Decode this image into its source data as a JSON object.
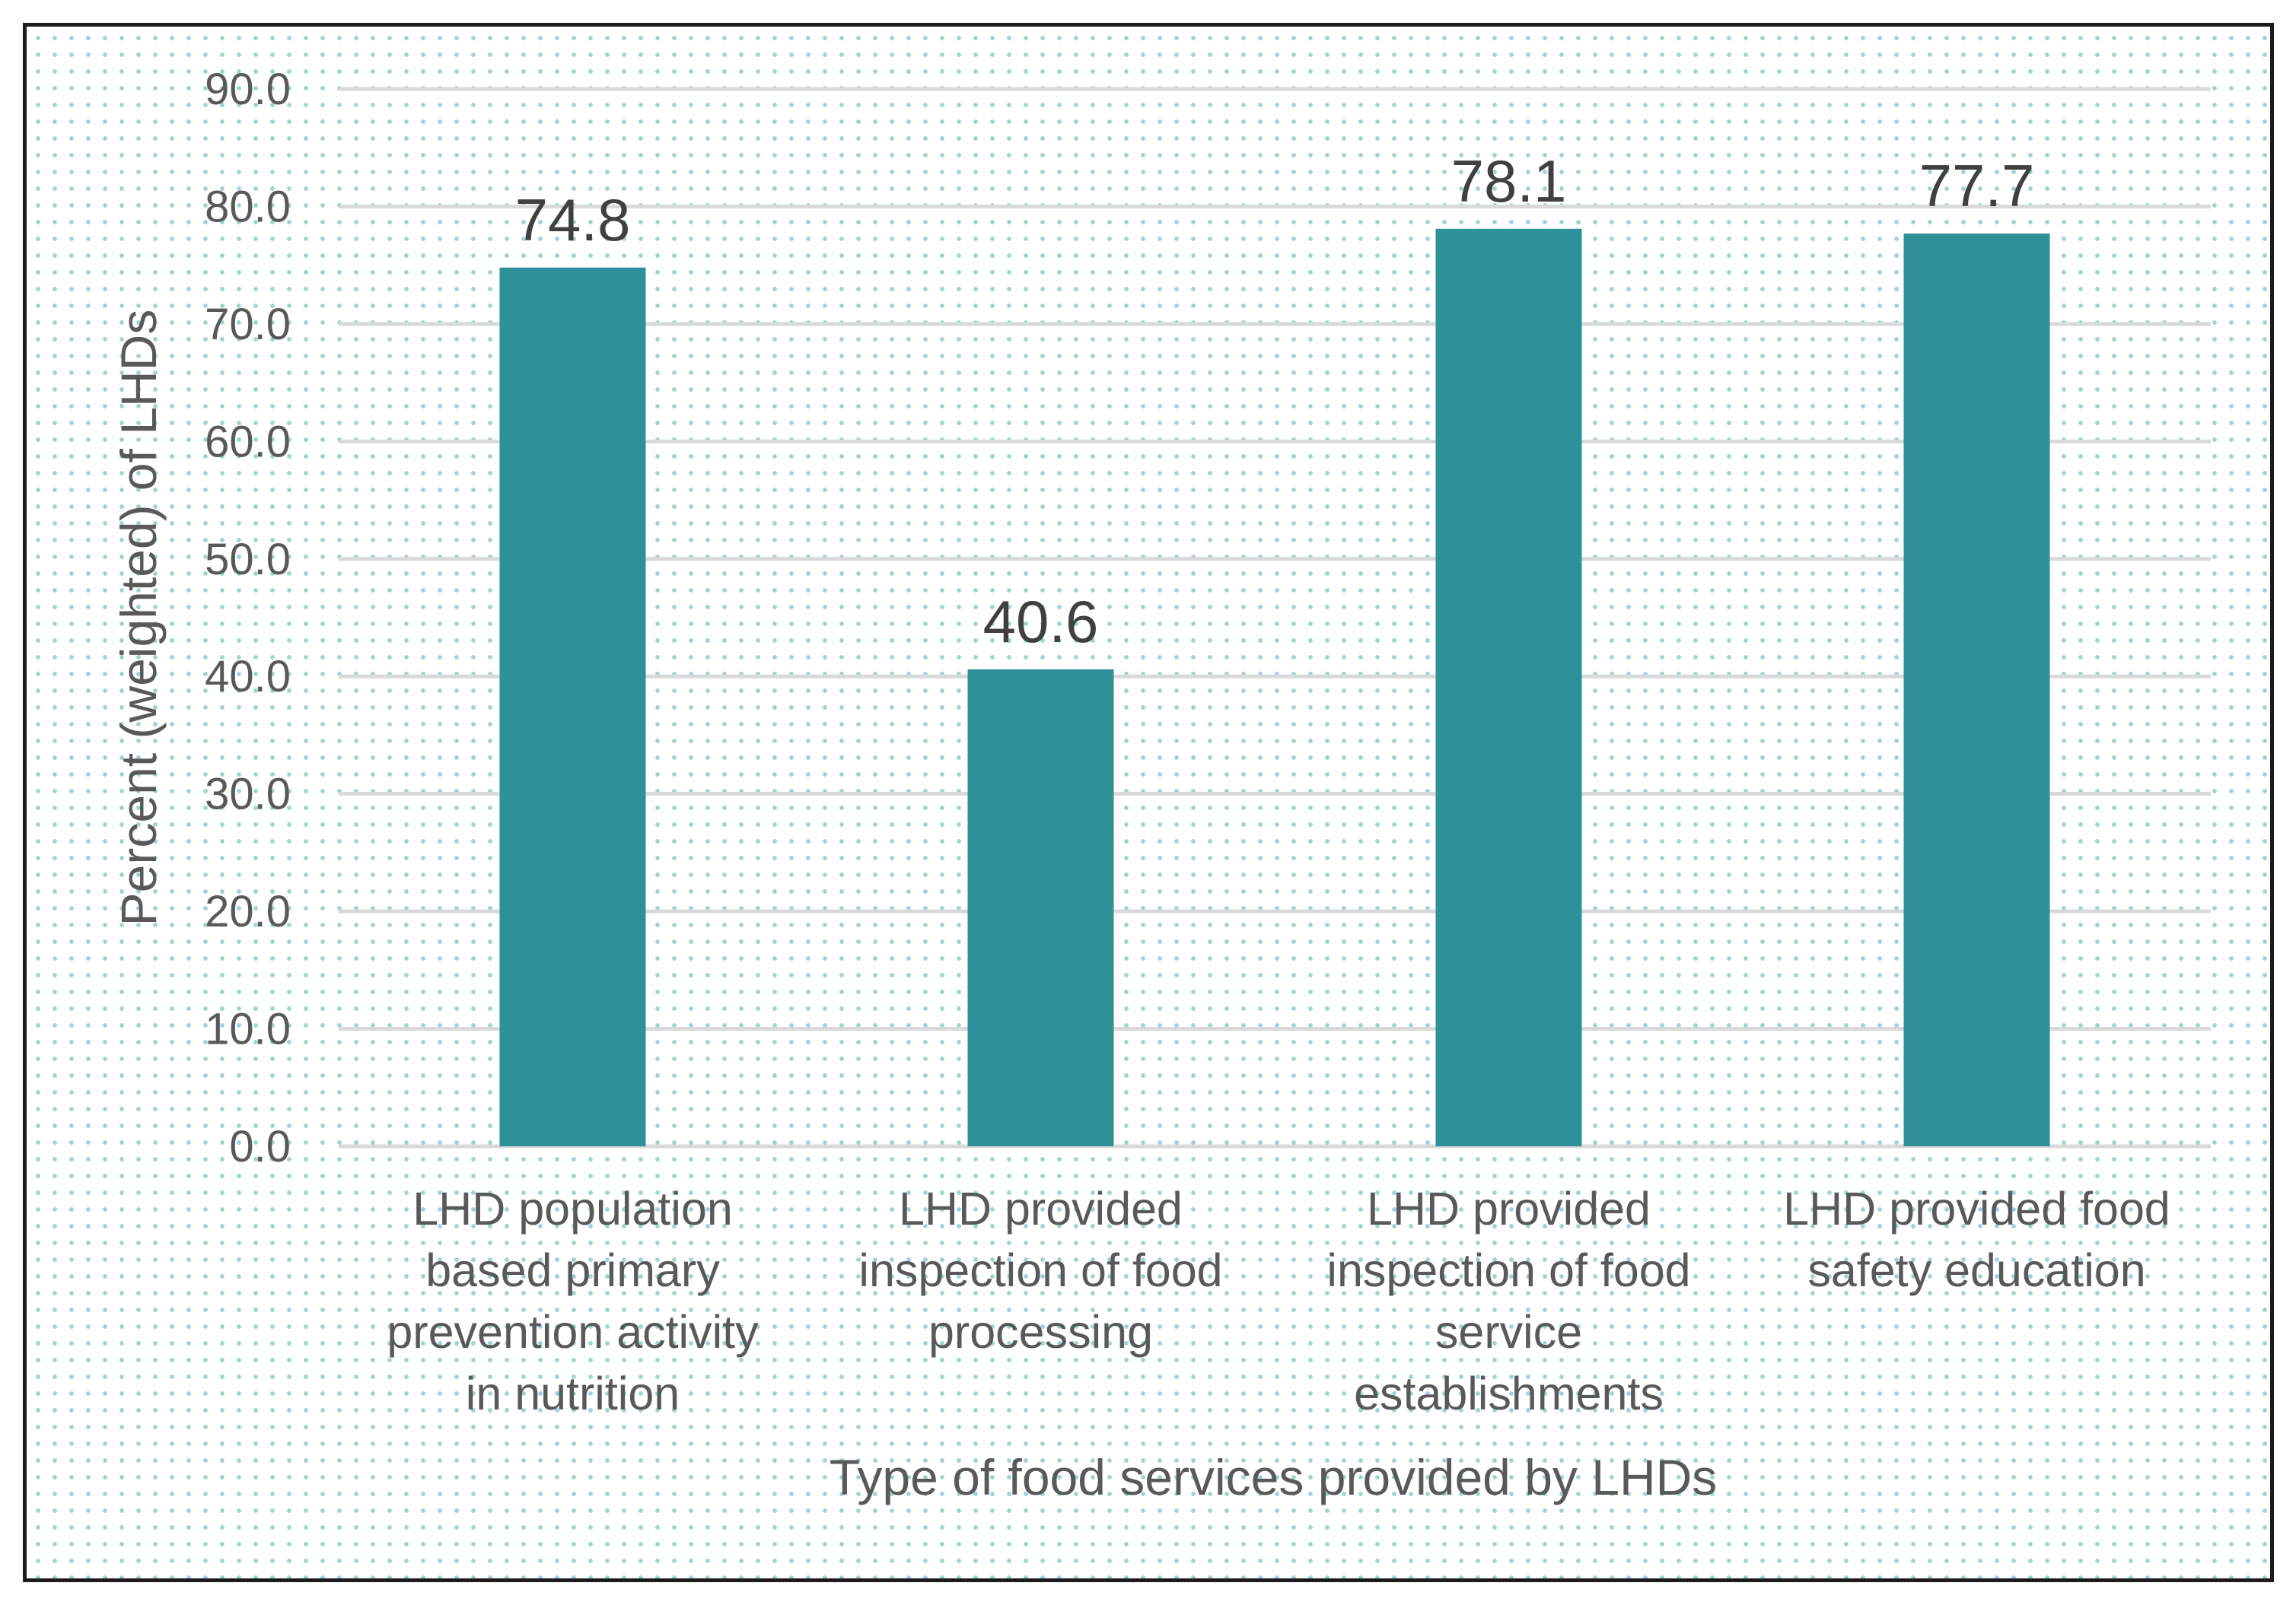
{
  "chart_data": {
    "type": "bar",
    "title": "",
    "xlabel": "Type of food services provided by LHDs",
    "ylabel": "Percent (weighted) of LHDs",
    "ylim": [
      0,
      90
    ],
    "yticks": [
      "0.0",
      "10.0",
      "20.0",
      "30.0",
      "40.0",
      "50.0",
      "60.0",
      "70.0",
      "80.0",
      "90.0"
    ],
    "grid": true,
    "legend": "none",
    "bar_color": "#2e9099",
    "categories": [
      [
        "LHD population",
        "based primary",
        "prevention activity",
        "in nutrition"
      ],
      [
        "LHD provided",
        "inspection of food",
        "processing"
      ],
      [
        "LHD provided",
        "inspection of  food",
        "service",
        "establishments"
      ],
      [
        "LHD provided food",
        "safety education"
      ]
    ],
    "values": [
      74.8,
      40.6,
      78.1,
      77.7
    ],
    "value_labels": [
      "74.8",
      "40.6",
      "78.1",
      "77.7"
    ]
  }
}
